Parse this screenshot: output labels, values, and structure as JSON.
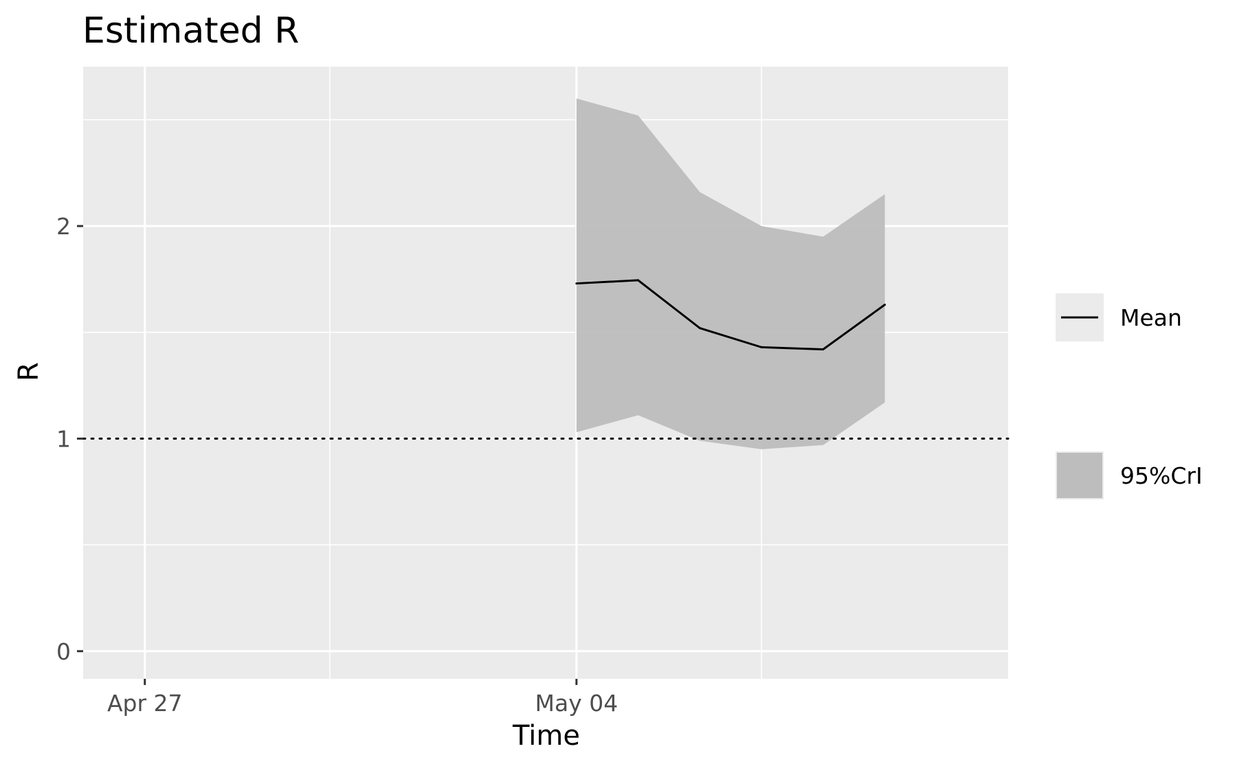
{
  "chart_data": {
    "type": "line",
    "title": "Estimated R",
    "xlabel": "Time",
    "ylabel": "R",
    "x_axis": {
      "type": "date",
      "range": [
        "2020-04-26",
        "2020-05-11"
      ],
      "ticks": [
        {
          "date": "2020-04-27",
          "label": "Apr 27"
        },
        {
          "date": "2020-05-04",
          "label": "May 04"
        }
      ],
      "minor_grid": [
        "2020-04-30",
        "2020-05-07"
      ]
    },
    "y_axis": {
      "range": [
        -0.13,
        2.75
      ],
      "ticks": [
        0,
        1,
        2
      ],
      "tick_labels": [
        "0",
        "1",
        "2"
      ],
      "minor_grid": [
        0.5,
        1.5,
        2.5
      ]
    },
    "grid": true,
    "background_color": "#ebebeb",
    "reference_line": {
      "y": 1,
      "style": "dotted",
      "color": "#000000"
    },
    "x": [
      "2020-05-04",
      "2020-05-05",
      "2020-05-06",
      "2020-05-07",
      "2020-05-08",
      "2020-05-09"
    ],
    "series": [
      {
        "name": "Mean",
        "kind": "line",
        "color": "#000000",
        "values": [
          1.73,
          1.745,
          1.52,
          1.43,
          1.42,
          1.63
        ]
      },
      {
        "name": "95%CrI",
        "kind": "ribbon",
        "color": "#bdbdbd",
        "lower": [
          1.03,
          1.11,
          0.99,
          0.95,
          0.97,
          1.17
        ],
        "upper": [
          2.6,
          2.52,
          2.16,
          2.0,
          1.95,
          2.15
        ]
      }
    ],
    "legend": {
      "placement": "right",
      "entries": [
        {
          "label": "Mean",
          "key": "line"
        },
        {
          "label": "95%CrI",
          "key": "fill"
        }
      ]
    }
  }
}
